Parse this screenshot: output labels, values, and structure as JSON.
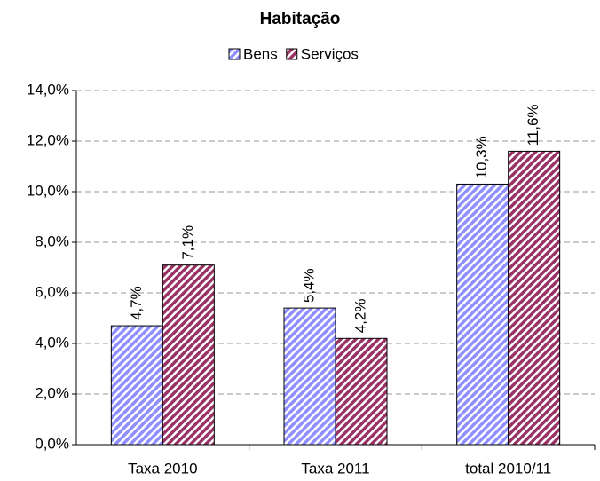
{
  "chart_data": {
    "type": "bar",
    "title": "Habitação",
    "categories": [
      "Taxa 2010",
      "Taxa 2011",
      "total 2010/11"
    ],
    "series": [
      {
        "name": "Bens",
        "color": "#8f8fff",
        "values": [
          4.7,
          5.4,
          10.3
        ],
        "value_labels": [
          "4,7%",
          "5,4%",
          "10,3%"
        ]
      },
      {
        "name": "Serviços",
        "color": "#993366",
        "values": [
          7.1,
          4.2,
          11.6
        ],
        "value_labels": [
          "7,1%",
          "4,2%",
          "11,6%"
        ]
      }
    ],
    "ylim": [
      0,
      14
    ],
    "yticks": [
      {
        "value": 0,
        "label": "0,0%"
      },
      {
        "value": 2,
        "label": "2,0%"
      },
      {
        "value": 4,
        "label": "4,0%"
      },
      {
        "value": 6,
        "label": "6,0%"
      },
      {
        "value": 8,
        "label": "8,0%"
      },
      {
        "value": 10,
        "label": "10,0%"
      },
      {
        "value": 12,
        "label": "12,0%"
      },
      {
        "value": 14,
        "label": "14,0%"
      }
    ],
    "grid": true,
    "legend": "top"
  }
}
